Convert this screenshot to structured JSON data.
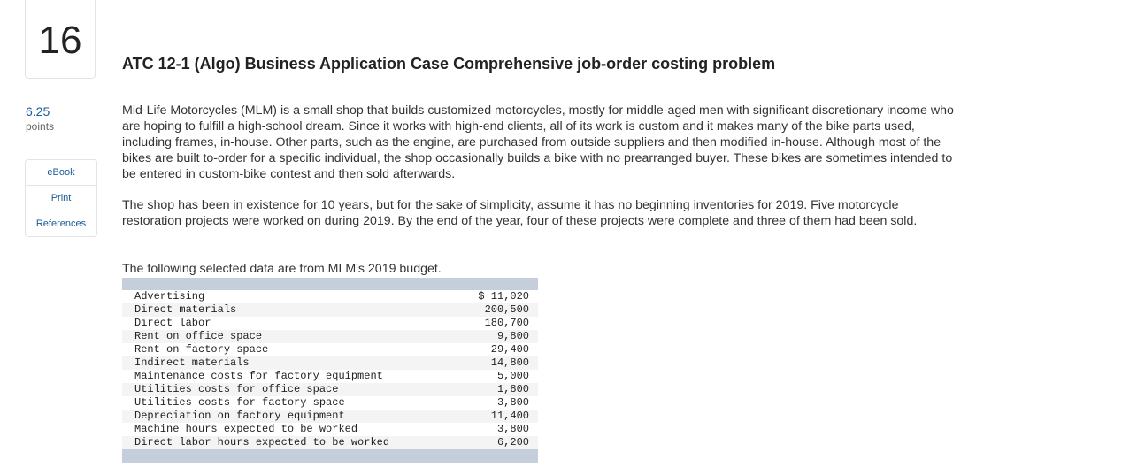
{
  "question": {
    "number": "16",
    "points_value": "6.25",
    "points_label": "points"
  },
  "sidebar": {
    "items": [
      {
        "label": "eBook"
      },
      {
        "label": "Print"
      },
      {
        "label": "References"
      }
    ]
  },
  "main": {
    "title": "ATC 12-1 (Algo) Business Application Case Comprehensive job-order costing problem",
    "paragraphs": [
      "Mid-Life Motorcycles (MLM) is a small shop that builds customized motorcycles, mostly for middle-aged men with significant discretionary income who are hoping to fulfill a high-school dream. Since it works with high-end clients, all of its work is custom and it makes many of the bike parts used, including frames, in-house. Other parts, such as the engine, are purchased from outside suppliers and then modified in-house.  Although most of the bikes are built to-order for a specific individual, the shop occasionally builds a bike with no prearranged buyer.  These bikes are sometimes intended to be entered in custom-bike contest and then sold afterwards.",
      "The shop has been in existence for 10 years, but for the sake of simplicity, assume it has no beginning inventories for 2019. Five motorcycle restoration projects were worked on during 2019. By the end of the year, four of these projects were complete and three of them had been sold.",
      "The following selected data are from MLM's 2019 budget."
    ],
    "budget_rows": [
      {
        "label": "Advertising",
        "amount": "$ 11,020"
      },
      {
        "label": "Direct materials",
        "amount": "200,500"
      },
      {
        "label": "Direct labor",
        "amount": "180,700"
      },
      {
        "label": "Rent on office space",
        "amount": "9,800"
      },
      {
        "label": "Rent on factory space",
        "amount": "29,400"
      },
      {
        "label": "Indirect materials",
        "amount": "14,800"
      },
      {
        "label": "Maintenance costs for factory equipment",
        "amount": "5,000"
      },
      {
        "label": "Utilities costs for office space",
        "amount": "1,800"
      },
      {
        "label": "Utilities costs for factory space",
        "amount": "3,800"
      },
      {
        "label": "Depreciation on factory equipment",
        "amount": "11,400"
      },
      {
        "label": "Machine hours expected to be worked",
        "amount": "3,800"
      },
      {
        "label": "Direct labor hours expected to be worked",
        "amount": "6,200"
      }
    ]
  }
}
